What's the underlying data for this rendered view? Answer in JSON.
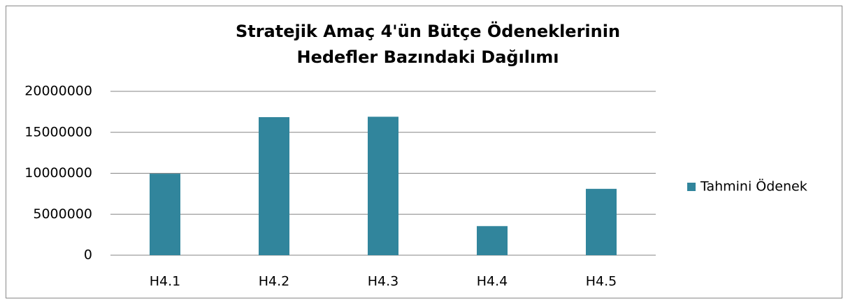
{
  "chart_data": {
    "type": "bar",
    "title": [
      "Stratejik Amaç 4'ün Bütçe Ödeneklerinin",
      "Hedefler Bazındaki Dağılımı"
    ],
    "categories": [
      "H4.1",
      "H4.2",
      "H4.3",
      "H4.4",
      "H4.5"
    ],
    "series": [
      {
        "name": "Tahmini Ödenek",
        "color": "#31859c",
        "values": [
          9950000,
          16850000,
          16900000,
          3550000,
          8100000
        ]
      }
    ],
    "ylim": [
      0,
      20000000
    ],
    "yticks": [
      0,
      5000000,
      10000000,
      15000000,
      20000000
    ],
    "grid": true,
    "legend": "right"
  }
}
